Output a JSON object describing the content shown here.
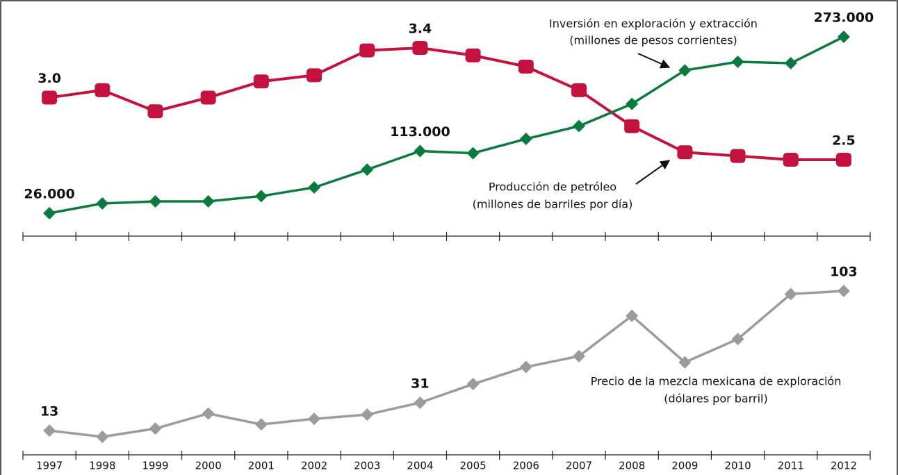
{
  "chart_data": {
    "type": "line",
    "categories": [
      "1997",
      "1998",
      "1999",
      "2000",
      "2001",
      "2002",
      "2003",
      "2004",
      "2005",
      "2006",
      "2007",
      "2008",
      "2009",
      "2010",
      "2011",
      "2012"
    ],
    "series": [
      {
        "name": "Producción de petróleo",
        "unit": "(millones de barriles por día)",
        "color": "#c4123f",
        "marker": "square",
        "panel": "top",
        "values": [
          3.0,
          3.06,
          2.89,
          3.0,
          3.13,
          3.18,
          3.38,
          3.4,
          3.34,
          3.25,
          3.06,
          2.77,
          2.56,
          2.53,
          2.5,
          2.5
        ],
        "value_labels": [
          "3.0",
          null,
          null,
          null,
          null,
          null,
          null,
          "3.4",
          null,
          null,
          null,
          null,
          null,
          null,
          null,
          "2.5"
        ]
      },
      {
        "name": "Inversión en exploración y extracción",
        "unit": "(millones de pesos corrientes)",
        "color": "#0b7a3e",
        "marker": "diamond",
        "panel": "top",
        "values": [
          26000,
          39600,
          42500,
          42500,
          50000,
          62000,
          87000,
          113000,
          110000,
          130000,
          148000,
          179000,
          226000,
          238000,
          236000,
          273000
        ],
        "value_labels": [
          "26.000",
          null,
          null,
          null,
          null,
          null,
          null,
          "113.000",
          null,
          null,
          null,
          null,
          null,
          null,
          null,
          "273.000"
        ]
      },
      {
        "name": "Precio de la mezcla mexicana de exploración",
        "unit": "(dólares por barril)",
        "color": "#9b9b9b",
        "marker": "diamond",
        "panel": "bottom",
        "values": [
          13,
          9,
          14.3,
          24,
          17,
          20.6,
          23.3,
          31,
          43,
          54,
          61,
          87,
          57,
          72,
          101,
          103
        ],
        "value_labels": [
          "13",
          null,
          null,
          null,
          null,
          null,
          null,
          "31",
          null,
          null,
          null,
          null,
          null,
          null,
          null,
          "103"
        ]
      }
    ]
  }
}
